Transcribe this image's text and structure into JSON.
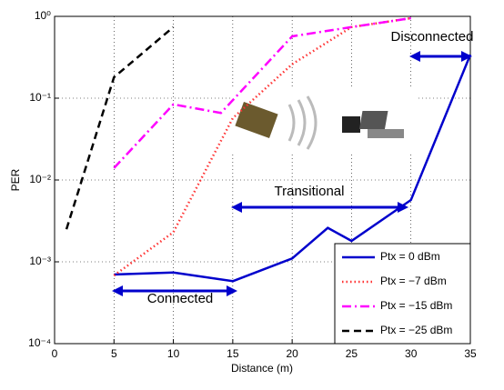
{
  "chart_data": {
    "type": "line",
    "xlabel": "Distance (m)",
    "ylabel": "PER",
    "log_y": true,
    "grid": true,
    "legend": "lower right",
    "xlim": [
      0,
      35
    ],
    "xticks": [
      0,
      5,
      10,
      15,
      20,
      25,
      30,
      35
    ],
    "ylim": [
      0.0001,
      1
    ],
    "yticks": [
      {
        "value": 0.0001,
        "label": "10⁻⁴"
      },
      {
        "value": 0.001,
        "label": "10⁻³"
      },
      {
        "value": 0.01,
        "label": "10⁻²"
      },
      {
        "value": 0.1,
        "label": "10⁻¹"
      },
      {
        "value": 1,
        "label": "10⁰"
      }
    ],
    "series": [
      {
        "name": "Ptx = 0 dBm",
        "color": "#0000cc",
        "style": "solid",
        "x": [
          5,
          10,
          15,
          20,
          23,
          25,
          30,
          35
        ],
        "values": [
          0.0007,
          0.00074,
          0.00058,
          0.0011,
          0.0026,
          0.0018,
          0.0057,
          0.34
        ]
      },
      {
        "name": "Ptx = −7 dBm",
        "color": "#ff3333",
        "style": "dotted",
        "x": [
          5,
          10,
          15,
          20,
          25,
          30
        ],
        "values": [
          0.00068,
          0.0023,
          0.057,
          0.26,
          0.74,
          0.95
        ]
      },
      {
        "name": "Ptx = −15 dBm",
        "color": "#ff00ff",
        "style": "dash-dot",
        "x": [
          5,
          10,
          14,
          20,
          25,
          30
        ],
        "values": [
          0.014,
          0.084,
          0.066,
          0.57,
          0.74,
          0.95
        ]
      },
      {
        "name": "Ptx = −25 dBm",
        "color": "#000000",
        "style": "dashed",
        "x": [
          1,
          5,
          10
        ],
        "values": [
          0.0025,
          0.18,
          0.74
        ]
      }
    ],
    "annotations": [
      "Disconnected",
      "Transitional",
      "Connected"
    ]
  }
}
